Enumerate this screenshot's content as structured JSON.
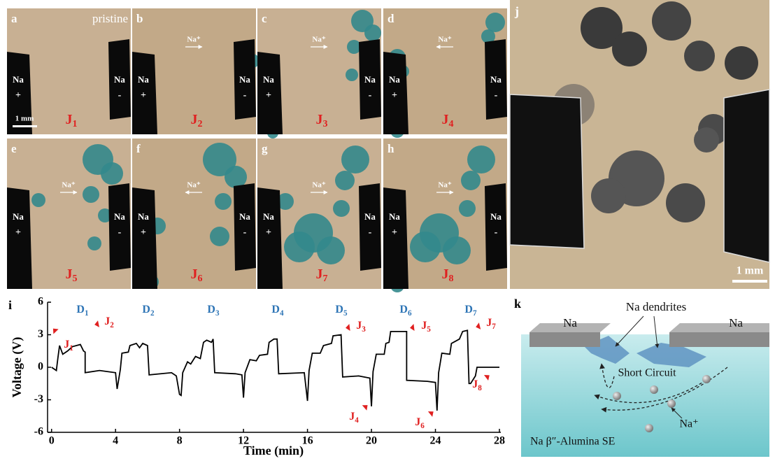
{
  "panels": [
    {
      "letter": "a",
      "note": "pristine",
      "junction": {
        "text": "J",
        "sub": "1"
      }
    },
    {
      "letter": "b",
      "ion": "Na⁺",
      "junction": {
        "text": "J",
        "sub": "2"
      }
    },
    {
      "letter": "c",
      "ion": "Na⁺",
      "junction": {
        "text": "J",
        "sub": "3"
      }
    },
    {
      "letter": "d",
      "ion": "Na⁺",
      "junction": {
        "text": "J",
        "sub": "4"
      }
    },
    {
      "letter": "e",
      "ion": "Na⁺",
      "junction": {
        "text": "J",
        "sub": "5"
      }
    },
    {
      "letter": "f",
      "ion": "Na⁺",
      "junction": {
        "text": "J",
        "sub": "6"
      }
    },
    {
      "letter": "g",
      "ion": "Na⁺",
      "junction": {
        "text": "J",
        "sub": "7"
      }
    },
    {
      "letter": "h",
      "ion": "Na⁺",
      "junction": {
        "text": "J",
        "sub": "8"
      }
    }
  ],
  "electrode": {
    "label": "Na",
    "left_sign": "+",
    "right_sign": "-"
  },
  "scale_bar": "1 mm",
  "panel_j": {
    "letter": "j",
    "scale_bar": "1 mm"
  },
  "chart_data": {
    "type": "line",
    "panel_label": "i",
    "x_label": "Time (min)",
    "y_label": "Voltage (V)",
    "xlim": [
      -0.25,
      28
    ],
    "ylim": [
      -6,
      6
    ],
    "xticks": [
      0,
      4,
      8,
      12,
      16,
      20,
      24,
      28
    ],
    "yticks": [
      -6,
      -3,
      0,
      3,
      6
    ],
    "x": [
      0,
      0.3,
      0.4,
      0.5,
      0.7,
      1.0,
      1.3,
      1.8,
      2.0,
      2.1,
      2.1,
      3,
      4,
      4.1,
      4.3,
      4.4,
      4.8,
      4.9,
      5.3,
      5.5,
      5.7,
      6.0,
      6.1,
      7.5,
      7.8,
      8.0,
      8.1,
      8.2,
      8.5,
      8.7,
      9,
      9.3,
      9.5,
      9.7,
      10,
      10.1,
      10.2,
      11.5,
      11.9,
      12,
      12.1,
      12.4,
      12.8,
      13,
      13.5,
      13.6,
      13.9,
      14.1,
      14.2,
      15.8,
      16.0,
      16.1,
      16.3,
      16.8,
      17,
      17.5,
      17.6,
      18.1,
      18.2,
      19.2,
      19.9,
      20,
      20.1,
      20.3,
      20.8,
      20.9,
      21.1,
      21.2,
      22.2,
      22.2,
      23.5,
      24.0,
      24.1,
      24.2,
      24.4,
      24.9,
      25.0,
      25.5,
      25.7,
      26.0,
      26.1,
      26.2,
      26.5,
      26.6,
      28
    ],
    "series": [
      {
        "color": "#000000",
        "values": [
          0,
          -0.3,
          0.9,
          2.0,
          1.2,
          1.5,
          1.9,
          2.1,
          1.5,
          1.4,
          -0.5,
          -0.3,
          -0.5,
          -2.0,
          -0.2,
          1.3,
          1.4,
          2.0,
          2.2,
          1.8,
          2.2,
          2.0,
          -0.7,
          -0.5,
          -0.8,
          -2.5,
          -2.6,
          -0.5,
          0.5,
          0.3,
          1.0,
          0.8,
          2.3,
          2.5,
          2.3,
          2.6,
          -0.5,
          -0.6,
          -0.7,
          -2.8,
          -0.5,
          0.7,
          0.6,
          1.1,
          1.2,
          2.3,
          2.6,
          2.6,
          -0.6,
          -0.5,
          -3.1,
          -0.3,
          1.3,
          1.3,
          2.0,
          2.2,
          2.9,
          3.0,
          -0.9,
          -0.8,
          -1.0,
          -3.6,
          -0.4,
          1.2,
          1.2,
          2.2,
          2.3,
          3.3,
          3.3,
          -1.2,
          -1.3,
          -1.4,
          -4.0,
          -0.5,
          1.3,
          1.2,
          2.2,
          2.6,
          3.3,
          3.4,
          -1.5,
          -1.5,
          -0.8,
          0,
          0
        ]
      }
    ],
    "annotations": [
      {
        "text": "D",
        "sub": "1",
        "color": "#2e75b6"
      },
      {
        "text": "D",
        "sub": "2",
        "color": "#2e75b6"
      },
      {
        "text": "D",
        "sub": "3",
        "color": "#2e75b6"
      },
      {
        "text": "D",
        "sub": "4",
        "color": "#2e75b6"
      },
      {
        "text": "D",
        "sub": "5",
        "color": "#2e75b6"
      },
      {
        "text": "D",
        "sub": "6",
        "color": "#2e75b6"
      },
      {
        "text": "D",
        "sub": "7",
        "color": "#2e75b6"
      },
      {
        "text": "J",
        "sub": "1",
        "color": "#e02020"
      },
      {
        "text": "J",
        "sub": "2",
        "color": "#e02020"
      },
      {
        "text": "J",
        "sub": "3",
        "color": "#e02020"
      },
      {
        "text": "J",
        "sub": "4",
        "color": "#e02020"
      },
      {
        "text": "J",
        "sub": "5",
        "color": "#e02020"
      },
      {
        "text": "J",
        "sub": "6",
        "color": "#e02020"
      },
      {
        "text": "J",
        "sub": "7",
        "color": "#e02020"
      },
      {
        "text": "J",
        "sub": "8",
        "color": "#e02020"
      }
    ]
  },
  "panel_k": {
    "letter": "k",
    "labels": [
      "Na",
      "Na",
      "Na dendrites",
      "Short Circuit",
      "Na⁺",
      "Na β″-Alumina SE"
    ]
  }
}
